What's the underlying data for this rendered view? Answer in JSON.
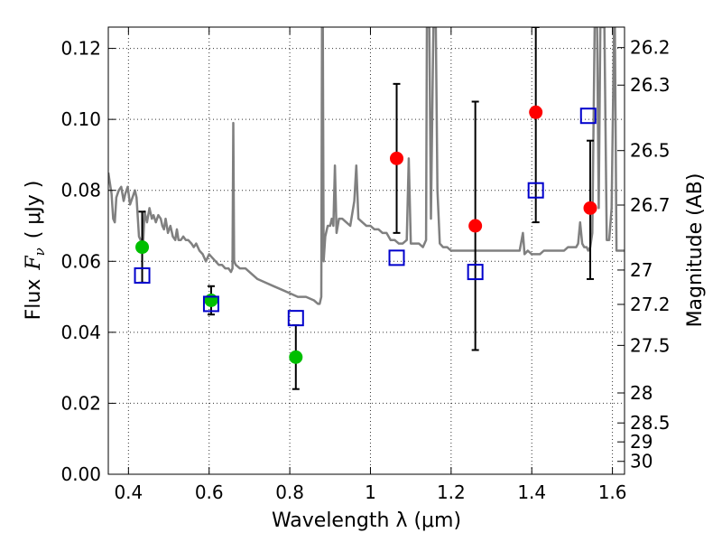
{
  "chart_data": {
    "type": "scatter",
    "xlabel": "Wavelength  λ (μm)",
    "ylabel_text": "Flux",
    "ylabel_math": "F",
    "ylabel_math_sub": "ν",
    "ylabel_unit": "( μJy )",
    "y2label": "Magnitude (AB)",
    "xlim": [
      0.35,
      1.63
    ],
    "ylim": [
      0.0,
      0.126
    ],
    "grid": true,
    "x_ticks": [
      {
        "value": 0.4,
        "label": "0.4"
      },
      {
        "value": 0.6,
        "label": "0.6"
      },
      {
        "value": 0.8,
        "label": "0.8"
      },
      {
        "value": 1.0,
        "label": "1"
      },
      {
        "value": 1.2,
        "label": "1.2"
      },
      {
        "value": 1.4,
        "label": "1.4"
      },
      {
        "value": 1.6,
        "label": "1.6"
      }
    ],
    "y_ticks": [
      {
        "value": 0.0,
        "label": "0.00"
      },
      {
        "value": 0.02,
        "label": "0.02"
      },
      {
        "value": 0.04,
        "label": "0.04"
      },
      {
        "value": 0.06,
        "label": "0.06"
      },
      {
        "value": 0.08,
        "label": "0.08"
      },
      {
        "value": 0.1,
        "label": "0.10"
      },
      {
        "value": 0.12,
        "label": "0.12"
      }
    ],
    "y2_ticks": [
      {
        "value": 26.2,
        "label": "26.2"
      },
      {
        "value": 26.3,
        "label": "26.3"
      },
      {
        "value": 26.5,
        "label": "26.5"
      },
      {
        "value": 26.7,
        "label": "26.7"
      },
      {
        "value": 27.0,
        "label": "27"
      },
      {
        "value": 27.2,
        "label": "27.2"
      },
      {
        "value": 27.5,
        "label": "27.5"
      },
      {
        "value": 28.0,
        "label": "28"
      },
      {
        "value": 28.5,
        "label": "28.5"
      },
      {
        "value": 29.0,
        "label": "29"
      },
      {
        "value": 30.0,
        "label": "30"
      }
    ],
    "series": [
      {
        "kind": "line",
        "color": "#808080",
        "points": [
          [
            0.35,
            0.085
          ],
          [
            0.358,
            0.079
          ],
          [
            0.362,
            0.072
          ],
          [
            0.366,
            0.071
          ],
          [
            0.37,
            0.078
          ],
          [
            0.376,
            0.08
          ],
          [
            0.382,
            0.081
          ],
          [
            0.388,
            0.077
          ],
          [
            0.392,
            0.079
          ],
          [
            0.398,
            0.081
          ],
          [
            0.404,
            0.076
          ],
          [
            0.41,
            0.078
          ],
          [
            0.416,
            0.08
          ],
          [
            0.42,
            0.078
          ],
          [
            0.426,
            0.067
          ],
          [
            0.43,
            0.066
          ],
          [
            0.436,
            0.064
          ],
          [
            0.44,
            0.074
          ],
          [
            0.446,
            0.071
          ],
          [
            0.452,
            0.075
          ],
          [
            0.458,
            0.072
          ],
          [
            0.462,
            0.073
          ],
          [
            0.468,
            0.071
          ],
          [
            0.474,
            0.073
          ],
          [
            0.48,
            0.072
          ],
          [
            0.484,
            0.07
          ],
          [
            0.488,
            0.069
          ],
          [
            0.492,
            0.072
          ],
          [
            0.498,
            0.068
          ],
          [
            0.504,
            0.07
          ],
          [
            0.51,
            0.067
          ],
          [
            0.516,
            0.066
          ],
          [
            0.52,
            0.069
          ],
          [
            0.524,
            0.066
          ],
          [
            0.53,
            0.066
          ],
          [
            0.536,
            0.067
          ],
          [
            0.542,
            0.066
          ],
          [
            0.548,
            0.066
          ],
          [
            0.556,
            0.065
          ],
          [
            0.562,
            0.064
          ],
          [
            0.568,
            0.065
          ],
          [
            0.576,
            0.063
          ],
          [
            0.584,
            0.062
          ],
          [
            0.592,
            0.06
          ],
          [
            0.6,
            0.062
          ],
          [
            0.608,
            0.061
          ],
          [
            0.616,
            0.06
          ],
          [
            0.624,
            0.059
          ],
          [
            0.632,
            0.059
          ],
          [
            0.64,
            0.058
          ],
          [
            0.648,
            0.058
          ],
          [
            0.654,
            0.057
          ],
          [
            0.658,
            0.058
          ],
          [
            0.66,
            0.099
          ],
          [
            0.662,
            0.06
          ],
          [
            0.666,
            0.059
          ],
          [
            0.676,
            0.058
          ],
          [
            0.69,
            0.058
          ],
          [
            0.7,
            0.057
          ],
          [
            0.72,
            0.055
          ],
          [
            0.74,
            0.054
          ],
          [
            0.76,
            0.053
          ],
          [
            0.78,
            0.052
          ],
          [
            0.8,
            0.051
          ],
          [
            0.82,
            0.05
          ],
          [
            0.84,
            0.05
          ],
          [
            0.86,
            0.049
          ],
          [
            0.87,
            0.048
          ],
          [
            0.874,
            0.048
          ],
          [
            0.878,
            0.05
          ],
          [
            0.88,
            0.126
          ],
          [
            0.882,
            0.126
          ],
          [
            0.884,
            0.06
          ],
          [
            0.888,
            0.067
          ],
          [
            0.894,
            0.07
          ],
          [
            0.9,
            0.07
          ],
          [
            0.904,
            0.072
          ],
          [
            0.908,
            0.07
          ],
          [
            0.912,
            0.087
          ],
          [
            0.916,
            0.068
          ],
          [
            0.922,
            0.072
          ],
          [
            0.93,
            0.072
          ],
          [
            0.94,
            0.071
          ],
          [
            0.95,
            0.07
          ],
          [
            0.96,
            0.077
          ],
          [
            0.965,
            0.087
          ],
          [
            0.97,
            0.072
          ],
          [
            0.98,
            0.071
          ],
          [
            0.99,
            0.07
          ],
          [
            1.0,
            0.07
          ],
          [
            1.01,
            0.069
          ],
          [
            1.02,
            0.069
          ],
          [
            1.03,
            0.068
          ],
          [
            1.04,
            0.068
          ],
          [
            1.05,
            0.066
          ],
          [
            1.06,
            0.066
          ],
          [
            1.07,
            0.065
          ],
          [
            1.08,
            0.065
          ],
          [
            1.09,
            0.066
          ],
          [
            1.095,
            0.089
          ],
          [
            1.1,
            0.065
          ],
          [
            1.11,
            0.065
          ],
          [
            1.12,
            0.065
          ],
          [
            1.13,
            0.064
          ],
          [
            1.138,
            0.066
          ],
          [
            1.14,
            0.126
          ],
          [
            1.146,
            0.126
          ],
          [
            1.15,
            0.072
          ],
          [
            1.156,
            0.126
          ],
          [
            1.162,
            0.126
          ],
          [
            1.166,
            0.08
          ],
          [
            1.172,
            0.065
          ],
          [
            1.18,
            0.064
          ],
          [
            1.19,
            0.064
          ],
          [
            1.2,
            0.063
          ],
          [
            1.21,
            0.063
          ],
          [
            1.22,
            0.063
          ],
          [
            1.23,
            0.063
          ],
          [
            1.24,
            0.063
          ],
          [
            1.25,
            0.063
          ],
          [
            1.26,
            0.063
          ],
          [
            1.27,
            0.063
          ],
          [
            1.28,
            0.063
          ],
          [
            1.29,
            0.063
          ],
          [
            1.3,
            0.063
          ],
          [
            1.31,
            0.063
          ],
          [
            1.32,
            0.063
          ],
          [
            1.33,
            0.063
          ],
          [
            1.34,
            0.063
          ],
          [
            1.35,
            0.063
          ],
          [
            1.36,
            0.063
          ],
          [
            1.37,
            0.063
          ],
          [
            1.378,
            0.068
          ],
          [
            1.382,
            0.062
          ],
          [
            1.39,
            0.063
          ],
          [
            1.4,
            0.062
          ],
          [
            1.41,
            0.062
          ],
          [
            1.42,
            0.062
          ],
          [
            1.43,
            0.063
          ],
          [
            1.44,
            0.063
          ],
          [
            1.45,
            0.063
          ],
          [
            1.46,
            0.063
          ],
          [
            1.47,
            0.063
          ],
          [
            1.48,
            0.063
          ],
          [
            1.49,
            0.064
          ],
          [
            1.5,
            0.064
          ],
          [
            1.51,
            0.064
          ],
          [
            1.515,
            0.065
          ],
          [
            1.52,
            0.071
          ],
          [
            1.525,
            0.065
          ],
          [
            1.53,
            0.064
          ],
          [
            1.536,
            0.064
          ],
          [
            1.54,
            0.063
          ],
          [
            1.545,
            0.064
          ],
          [
            1.55,
            0.068
          ],
          [
            1.556,
            0.126
          ],
          [
            1.562,
            0.126
          ],
          [
            1.566,
            0.075
          ],
          [
            1.57,
            0.126
          ],
          [
            1.58,
            0.126
          ],
          [
            1.586,
            0.066
          ],
          [
            1.592,
            0.066
          ],
          [
            1.598,
            0.075
          ],
          [
            1.604,
            0.126
          ],
          [
            1.606,
            0.126
          ],
          [
            1.61,
            0.063
          ],
          [
            1.62,
            0.063
          ],
          [
            1.63,
            0.063
          ]
        ]
      },
      {
        "kind": "points",
        "marker": "circle",
        "color": "#00bf00",
        "points": [
          {
            "x": 0.434,
            "y": 0.064,
            "err_low": 0.054,
            "err_high": 0.074
          },
          {
            "x": 0.605,
            "y": 0.049,
            "err_low": 0.045,
            "err_high": 0.053
          },
          {
            "x": 0.815,
            "y": 0.033,
            "err_low": 0.024,
            "err_high": 0.042
          }
        ]
      },
      {
        "kind": "points",
        "marker": "circle",
        "color": "#ff0000",
        "points": [
          {
            "x": 1.065,
            "y": 0.089,
            "err_low": 0.068,
            "err_high": 0.11
          },
          {
            "x": 1.26,
            "y": 0.07,
            "err_low": 0.035,
            "err_high": 0.105
          },
          {
            "x": 1.41,
            "y": 0.102,
            "err_low": 0.071,
            "err_high": 0.126
          },
          {
            "x": 1.545,
            "y": 0.075,
            "err_low": 0.055,
            "err_high": 0.094
          }
        ]
      },
      {
        "kind": "points",
        "marker": "square-open",
        "color": "#0000cc",
        "points": [
          {
            "x": 0.434,
            "y": 0.056
          },
          {
            "x": 0.605,
            "y": 0.048
          },
          {
            "x": 0.815,
            "y": 0.044
          },
          {
            "x": 1.065,
            "y": 0.061
          },
          {
            "x": 1.26,
            "y": 0.057
          },
          {
            "x": 1.41,
            "y": 0.08
          },
          {
            "x": 1.54,
            "y": 0.101
          }
        ]
      }
    ]
  }
}
